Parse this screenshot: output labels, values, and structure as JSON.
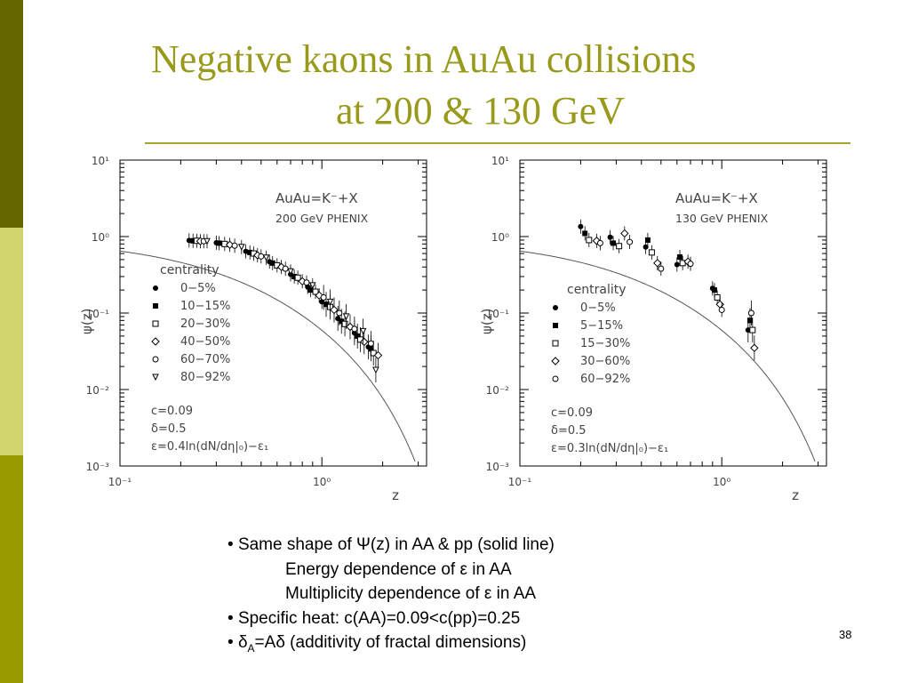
{
  "slide": {
    "title_line1": "Negative kaons in AuAu collisions",
    "title_line2": "at 200 & 130 GeV",
    "page_number": "38",
    "colors": {
      "title": "#999a1b",
      "rule": "#a5a52a",
      "sidebar": [
        "#666600",
        "#d1d36c",
        "#999900"
      ]
    },
    "bullets": [
      {
        "bullet": "•",
        "parts": [
          "Same shape of ",
          "Ψ",
          "(z) in AA & pp (solid line)"
        ]
      },
      {
        "indent": true,
        "parts": [
          "Energy dependence of ",
          "ε",
          " in  AA"
        ]
      },
      {
        "indent": true,
        "parts": [
          "Multiplicity dependence of ",
          "ε",
          " in AA"
        ]
      },
      {
        "bullet": "•",
        "text": "Specific heat: c(AA)=0.09<c(pp)=0.25"
      },
      {
        "bullet": "•",
        "parts": [
          "δ",
          "A",
          "=A",
          "δ",
          " (additivity of fractal dimensions)"
        ]
      }
    ]
  },
  "chart_data": [
    {
      "type": "scatter",
      "title": "",
      "xlabel": "z",
      "ylabel": "ψ(z)",
      "xscale": "log",
      "yscale": "log",
      "xlim": [
        0.1,
        3.3
      ],
      "ylim": [
        0.001,
        10
      ],
      "x_ticks": [
        "10⁻¹",
        "10⁰"
      ],
      "y_ticks": [
        "10⁻³",
        "10⁻²",
        "10⁻¹",
        "10⁰",
        "10¹"
      ],
      "annotation": {
        "line1": "AuAu=K⁻+X",
        "line2": "200 GeV PHENIX"
      },
      "legend_title": "centrality",
      "params": [
        "c=0.09",
        "δ=0.5",
        "ε=0.4ln(dN/dη|₀)−ε₁"
      ],
      "curve": {
        "c": 0.09,
        "amp": 0.9,
        "z0": 0.27,
        "alpha": 0.333
      },
      "series": [
        {
          "name": "0−5%",
          "marker": "dot",
          "x": [
            0.22,
            0.3,
            0.42,
            0.55,
            0.7,
            0.85,
            1.0,
            1.2,
            1.45,
            1.7
          ],
          "y": [
            0.89,
            0.83,
            0.64,
            0.47,
            0.32,
            0.22,
            0.14,
            0.085,
            0.055,
            0.036
          ]
        },
        {
          "name": "10−15%",
          "marker": "square",
          "x": [
            0.23,
            0.31,
            0.44,
            0.57,
            0.73,
            0.88,
            1.05,
            1.25,
            1.5,
            1.75
          ],
          "y": [
            0.88,
            0.82,
            0.62,
            0.45,
            0.3,
            0.2,
            0.13,
            0.078,
            0.05,
            0.034
          ]
        },
        {
          "name": "20−30%",
          "marker": "open-square",
          "x": [
            0.24,
            0.33,
            0.46,
            0.6,
            0.76,
            0.93,
            1.1,
            1.3,
            1.55,
            1.8
          ],
          "y": [
            0.88,
            0.8,
            0.6,
            0.42,
            0.29,
            0.19,
            0.12,
            0.072,
            0.045,
            0.03
          ]
        },
        {
          "name": "40−50%",
          "marker": "open-diamond",
          "x": [
            0.25,
            0.35,
            0.48,
            0.63,
            0.8,
            0.97,
            1.15,
            1.38,
            1.62,
            1.9
          ],
          "y": [
            0.87,
            0.78,
            0.57,
            0.4,
            0.26,
            0.17,
            0.11,
            0.066,
            0.042,
            0.028
          ]
        },
        {
          "name": "60−70%",
          "marker": "open-circle",
          "x": [
            0.26,
            0.37,
            0.5,
            0.66,
            0.84,
            1.02,
            1.22,
            1.45,
            1.75
          ],
          "y": [
            0.87,
            0.76,
            0.55,
            0.38,
            0.25,
            0.16,
            0.1,
            0.062,
            0.04
          ]
        },
        {
          "name": "80−92%",
          "marker": "open-triangle",
          "x": [
            0.27,
            0.4,
            0.53,
            0.7,
            0.9,
            1.1,
            1.32,
            1.6,
            1.85
          ],
          "y": [
            0.87,
            0.73,
            0.53,
            0.35,
            0.23,
            0.14,
            0.09,
            0.058,
            0.018
          ]
        }
      ]
    },
    {
      "type": "scatter",
      "title": "",
      "xlabel": "z",
      "ylabel": "ψ(z)",
      "xscale": "log",
      "yscale": "log",
      "xlim": [
        0.1,
        3.3
      ],
      "ylim": [
        0.001,
        10
      ],
      "x_ticks": [
        "10⁻¹",
        "10⁰"
      ],
      "y_ticks": [
        "10⁻³",
        "10⁻²",
        "10⁻¹",
        "10⁰",
        "10¹"
      ],
      "annotation": {
        "line1": "AuAu=K⁻+X",
        "line2": "130 GeV PHENIX"
      },
      "legend_title": "centrality",
      "params": [
        "c=0.09",
        "δ=0.5",
        "ε=0.3ln(dN/dη|₀)−ε₁"
      ],
      "curve": {
        "c": 0.09,
        "amp": 0.9,
        "z0": 0.27,
        "alpha": 0.333
      },
      "series": [
        {
          "name": "0−5%",
          "marker": "dot",
          "x": [
            0.2,
            0.28,
            0.42,
            0.6,
            0.9,
            1.35
          ],
          "y": [
            1.35,
            0.98,
            0.73,
            0.43,
            0.21,
            0.06
          ]
        },
        {
          "name": "5−15%",
          "marker": "square",
          "x": [
            0.21,
            0.29,
            0.43,
            0.62,
            0.92,
            1.38
          ],
          "y": [
            1.1,
            0.82,
            0.9,
            0.54,
            0.2,
            0.08
          ]
        },
        {
          "name": "15−30%",
          "marker": "open-square",
          "x": [
            0.22,
            0.31,
            0.45,
            0.64,
            0.95,
            1.42
          ],
          "y": [
            0.9,
            0.75,
            0.62,
            0.45,
            0.16,
            0.06
          ]
        },
        {
          "name": "30−60%",
          "marker": "open-diamond",
          "x": [
            0.24,
            0.33,
            0.48,
            0.68,
            0.98,
            1.45
          ],
          "y": [
            0.88,
            1.1,
            0.45,
            0.47,
            0.13,
            0.035
          ]
        },
        {
          "name": "60−92%",
          "marker": "open-circle",
          "x": [
            0.25,
            0.35,
            0.5,
            0.7,
            1.0,
            1.4
          ],
          "y": [
            0.82,
            0.85,
            0.38,
            0.44,
            0.11,
            0.1
          ]
        }
      ]
    }
  ]
}
